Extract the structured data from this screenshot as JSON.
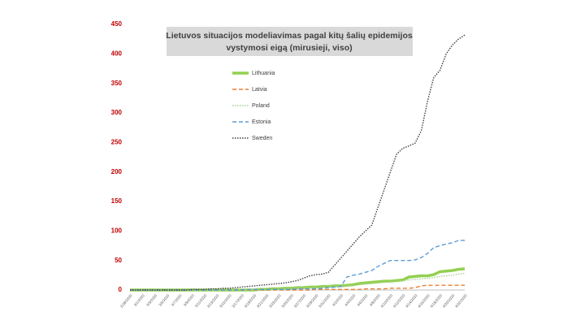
{
  "chart_data": {
    "type": "line",
    "title": [
      "Lietuvos situacijos  modeliavimas pagal kitų šalių epidemijos",
      "vystymosi eigą (mirusieji, viso)"
    ],
    "categories": [
      "2/28/2020",
      null,
      "3/1/2020",
      null,
      "3/3/2020",
      null,
      "3/5/2020",
      null,
      "3/7/2020",
      null,
      "3/9/2020",
      null,
      "3/11/2020",
      null,
      "3/13/2020",
      null,
      "3/15/2020",
      null,
      "3/17/2020",
      null,
      "3/19/2020",
      null,
      "3/21/2020",
      null,
      "3/23/2020",
      null,
      "3/25/2020",
      null,
      "3/27/2020",
      null,
      "3/29/2020",
      null,
      "3/31/2020",
      null,
      "4/2/2020",
      null,
      "4/4/2020",
      null,
      "4/6/2020",
      null,
      "4/8/2020",
      null,
      "4/10/2020",
      null,
      "4/12/2020",
      null,
      "4/14/2020",
      null,
      "4/16/2020",
      null,
      "4/18/2020",
      null,
      "4/20/2020",
      null,
      "4/22/2020"
    ],
    "series": [
      {
        "name": "Lithuania",
        "color": "#92d050",
        "style": "solid",
        "values": [
          0,
          0,
          0,
          0,
          0,
          0,
          0,
          0,
          0,
          0,
          0,
          0,
          0,
          0,
          0,
          0,
          0,
          0,
          0,
          0,
          0,
          1,
          1,
          2,
          2,
          3,
          3,
          4,
          4,
          5,
          5,
          6,
          6,
          7,
          7,
          8,
          9,
          11,
          12,
          13,
          14,
          15,
          15,
          16,
          17,
          22,
          23,
          24,
          24,
          26,
          31,
          32,
          33,
          35,
          36
        ]
      },
      {
        "name": "Latvia",
        "color": "#ed7d31",
        "style": "dashed",
        "values": [
          0,
          0,
          0,
          0,
          0,
          0,
          0,
          0,
          0,
          0,
          0,
          0,
          0,
          0,
          0,
          0,
          0,
          0,
          0,
          0,
          0,
          0,
          0,
          0,
          0,
          0,
          0,
          0,
          0,
          0,
          1,
          1,
          1,
          1,
          1,
          1,
          1,
          1,
          2,
          2,
          2,
          2,
          3,
          3,
          3,
          3,
          4,
          7,
          8,
          8,
          8,
          8,
          8,
          8,
          8
        ]
      },
      {
        "name": "Poland",
        "color": "#a9d18e",
        "style": "dotted",
        "values": [
          0,
          0,
          0,
          0,
          0,
          0,
          0,
          0,
          0,
          0,
          0,
          0,
          0,
          0,
          0,
          0,
          0,
          0,
          0,
          0,
          0,
          0,
          0,
          1,
          1,
          2,
          2,
          3,
          3,
          4,
          4,
          5,
          5,
          6,
          6,
          7,
          8,
          9,
          10,
          11,
          12,
          13,
          14,
          15,
          16,
          17,
          18,
          19,
          20,
          21,
          23,
          24,
          25,
          27,
          28
        ]
      },
      {
        "name": "Estonia",
        "color": "#5b9bd5",
        "style": "dashed",
        "values": [
          0,
          0,
          0,
          0,
          0,
          0,
          0,
          0,
          0,
          0,
          0,
          0,
          0,
          0,
          0,
          0,
          0,
          0,
          0,
          1,
          1,
          1,
          1,
          1,
          1,
          1,
          1,
          2,
          2,
          2,
          2,
          3,
          4,
          5,
          6,
          22,
          25,
          27,
          30,
          33,
          40,
          45,
          50,
          50,
          50,
          50,
          51,
          55,
          62,
          72,
          75,
          78,
          80,
          84,
          84
        ]
      },
      {
        "name": "Sweden",
        "color": "#404040",
        "style": "dotted",
        "values": [
          0,
          0,
          0,
          0,
          0,
          0,
          0,
          0,
          0,
          0,
          1,
          1,
          1,
          2,
          2,
          3,
          3,
          4,
          5,
          6,
          7,
          8,
          9,
          10,
          11,
          12,
          14,
          16,
          20,
          24,
          26,
          27,
          30,
          42,
          54,
          66,
          78,
          90,
          100,
          110,
          140,
          170,
          200,
          230,
          240,
          244,
          249,
          270,
          320,
          360,
          372,
          400,
          415,
          425,
          432
        ]
      }
    ],
    "ylim": [
      0,
      450
    ],
    "yticks": [
      0,
      50,
      100,
      150,
      200,
      250,
      300,
      350,
      400,
      450
    ],
    "grid": false
  }
}
